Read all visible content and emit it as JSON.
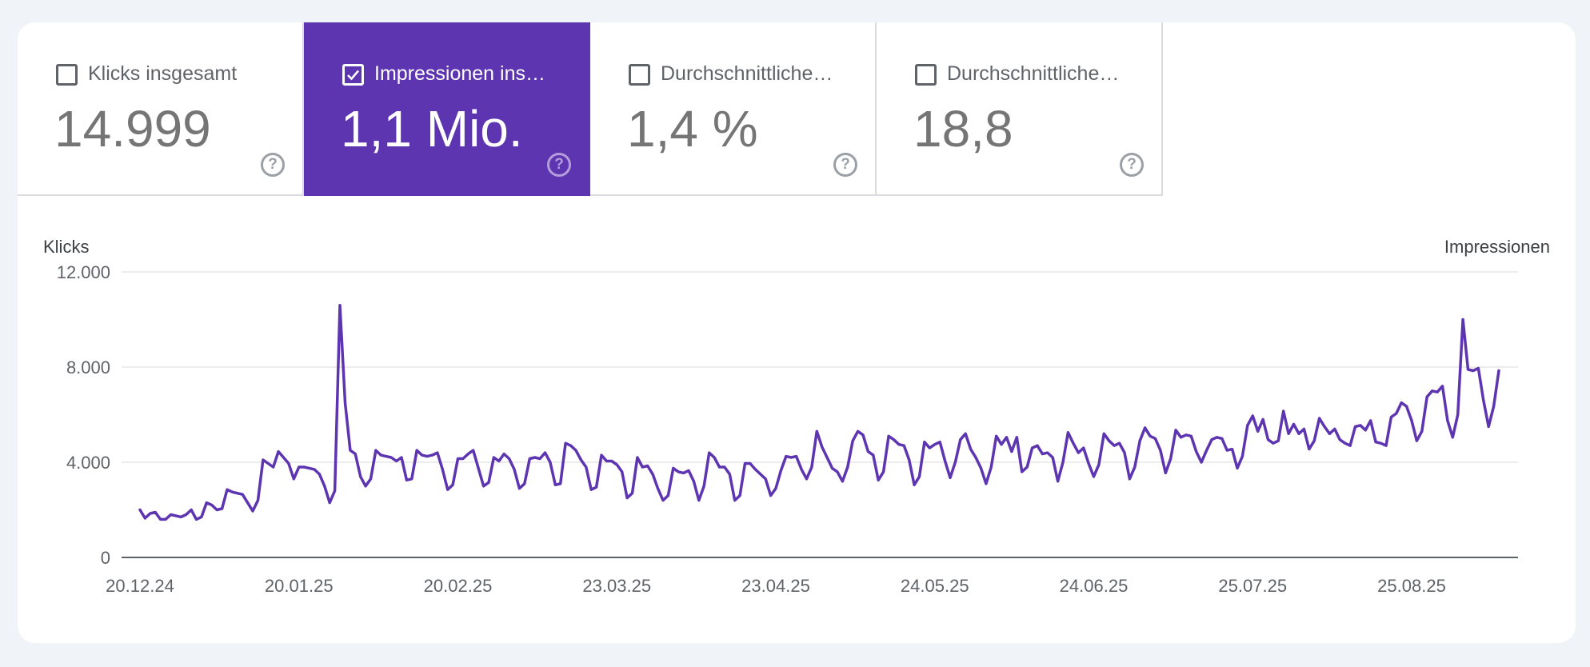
{
  "metrics": [
    {
      "label": "Klicks insgesamt",
      "value": "14.999",
      "selected": false,
      "help_icon": "help-circle-icon"
    },
    {
      "label": "Impressionen ins…",
      "value": "1,1 Mio.",
      "selected": true,
      "help_icon": "help-circle-icon"
    },
    {
      "label": "Durchschnittliche…",
      "value": "1,4 %",
      "selected": false,
      "help_icon": "help-circle-icon"
    },
    {
      "label": "Durchschnittliche…",
      "value": "18,8",
      "selected": false,
      "help_icon": "help-circle-icon"
    }
  ],
  "colors": {
    "accent": "#5e35b1",
    "line": "#5e35b1",
    "grid": "#e6e6e6",
    "axis": "#5f6368"
  },
  "chart_data": {
    "type": "line",
    "ylabel_left": "Klicks",
    "ylabel_right": "Impressionen",
    "y_ticks": [
      {
        "value": 0,
        "label": "0"
      },
      {
        "value": 4000,
        "label": "4.000"
      },
      {
        "value": 8000,
        "label": "8.000"
      },
      {
        "value": 12000,
        "label": "12.000"
      }
    ],
    "ylim": [
      0,
      12000
    ],
    "x_ticks": [
      {
        "index": 0,
        "label": "20.12.24"
      },
      {
        "index": 31,
        "label": "20.01.25"
      },
      {
        "index": 62,
        "label": "20.02.25"
      },
      {
        "index": 93,
        "label": "23.03.25"
      },
      {
        "index": 124,
        "label": "23.04.25"
      },
      {
        "index": 155,
        "label": "24.05.25"
      },
      {
        "index": 186,
        "label": "24.06.25"
      },
      {
        "index": 217,
        "label": "25.07.25"
      },
      {
        "index": 248,
        "label": "25.08.25"
      }
    ],
    "grid": true,
    "legend": "none",
    "series": [
      {
        "values": [
          2000,
          1650,
          1850,
          1900,
          1600,
          1600,
          1800,
          1750,
          1700,
          1800,
          2000,
          1600,
          1700,
          2300,
          2200,
          2000,
          2050,
          2850,
          2750,
          2700,
          2650,
          2300,
          1950,
          2400,
          4100,
          3950,
          3800,
          4450,
          4200,
          3950,
          3300,
          3800,
          3800,
          3750,
          3700,
          3500,
          3000,
          2300,
          2800,
          10600,
          6500,
          4500,
          4350,
          3400,
          3000,
          3300,
          4500,
          4300,
          4250,
          4200,
          4050,
          4200,
          3250,
          3300,
          4500,
          4300,
          4250,
          4300,
          4400,
          3700,
          2850,
          3050,
          4150,
          4150,
          4350,
          4500,
          3750,
          3000,
          3150,
          4200,
          4050,
          4350,
          4150,
          3700,
          2900,
          3100,
          4150,
          4200,
          4150,
          4400,
          4000,
          3050,
          3100,
          4800,
          4700,
          4500,
          4100,
          3800,
          2850,
          2950,
          4300,
          4050,
          4050,
          3900,
          3600,
          2500,
          2700,
          4200,
          3800,
          3850,
          3500,
          2900,
          2400,
          2600,
          3750,
          3600,
          3550,
          3650,
          3200,
          2400,
          3000,
          4400,
          4200,
          3800,
          3800,
          3500,
          2400,
          2600,
          3950,
          3950,
          3700,
          3500,
          3300,
          2600,
          2900,
          3650,
          4250,
          4200,
          4250,
          3700,
          3300,
          3800,
          5300,
          4650,
          4200,
          3750,
          3600,
          3200,
          3800,
          4900,
          5300,
          5150,
          4450,
          4300,
          3250,
          3600,
          5100,
          4950,
          4750,
          4700,
          4100,
          3050,
          3400,
          4850,
          4600,
          4750,
          4850,
          4050,
          3350,
          4000,
          4950,
          5200,
          4550,
          4200,
          3750,
          3100,
          3800,
          5100,
          4750,
          5050,
          4450,
          5050,
          3600,
          3800,
          4600,
          4700,
          4350,
          4400,
          4200,
          3200,
          4000,
          5250,
          4800,
          4400,
          4600,
          3950,
          3400,
          3900,
          5200,
          4900,
          4700,
          4800,
          4400,
          3300,
          3800,
          4900,
          5450,
          5100,
          5000,
          4500,
          3550,
          4150,
          5350,
          5050,
          5150,
          5100,
          4450,
          4000,
          4500,
          4950,
          5050,
          5000,
          4500,
          4550,
          3750,
          4250,
          5550,
          5950,
          5300,
          5800,
          4950,
          4800,
          4900,
          6150,
          5200,
          5600,
          5200,
          5400,
          4550,
          4900,
          5850,
          5500,
          5200,
          5400,
          4950,
          4800,
          4700,
          5500,
          5550,
          5350,
          5750,
          4850,
          4800,
          4700,
          5900,
          6050,
          6500,
          6350,
          5750,
          4900,
          5300,
          6750,
          7000,
          6950,
          7200,
          5750,
          5050,
          6000,
          10000,
          7900,
          7850,
          7950,
          6600,
          5500,
          6350,
          7850
        ]
      }
    ]
  }
}
